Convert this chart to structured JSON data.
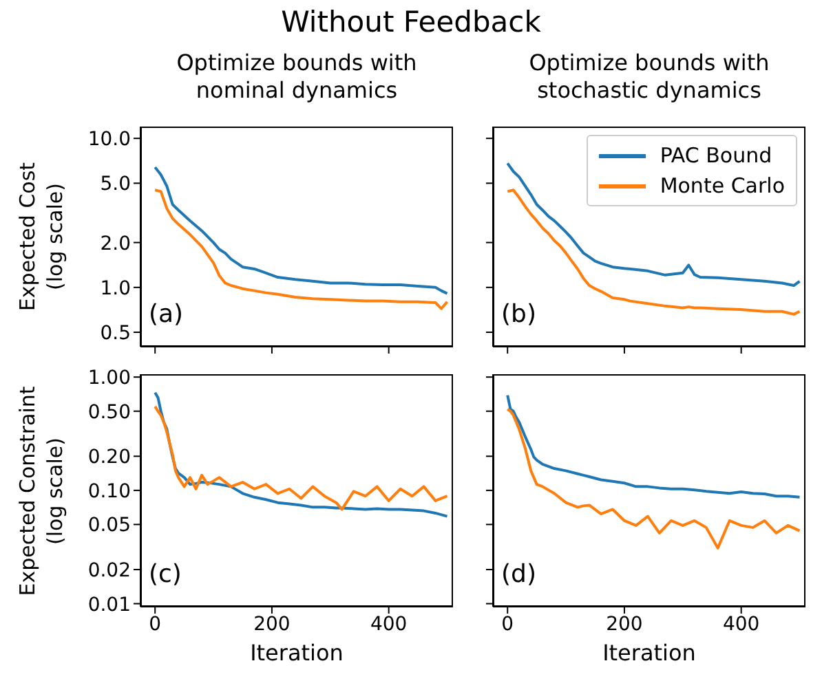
{
  "chart_data": [
    {
      "type": "line",
      "title": "Without Feedback",
      "subtitle": "Optimize bounds with\nnominal dynamics",
      "ylabel": "Expected Cost\n(log scale)",
      "annotations": [
        "(a)"
      ],
      "log": "y",
      "legend": false,
      "tick_labels": "y",
      "xlim": [
        -25,
        510
      ],
      "xticks": [
        {
          "value": 0,
          "label": null
        },
        {
          "value": 200,
          "label": null
        },
        {
          "value": 400,
          "label": null
        }
      ],
      "ylim": [
        0.4,
        12
      ],
      "yticks": [
        {
          "value": 10,
          "label": "10.0"
        },
        {
          "value": 5,
          "label": "5.0"
        },
        {
          "value": 2,
          "label": "2.0"
        },
        {
          "value": 1,
          "label": "1.0"
        },
        {
          "value": 0.5,
          "label": "0.5"
        }
      ],
      "x": [
        0,
        10,
        20,
        30,
        40,
        60,
        80,
        100,
        110,
        120,
        130,
        150,
        170,
        190,
        210,
        240,
        270,
        300,
        330,
        360,
        390,
        420,
        450,
        480,
        490,
        500
      ],
      "series": [
        {
          "color": "#1f77b4",
          "values": [
            6.4,
            5.7,
            4.8,
            3.6,
            3.3,
            2.8,
            2.4,
            2.0,
            1.8,
            1.7,
            1.55,
            1.37,
            1.33,
            1.25,
            1.17,
            1.13,
            1.1,
            1.07,
            1.07,
            1.05,
            1.04,
            1.04,
            1.02,
            1.0,
            0.95,
            0.91
          ]
        },
        {
          "color": "#ff7f0e",
          "values": [
            4.5,
            4.4,
            3.4,
            2.9,
            2.65,
            2.26,
            1.88,
            1.46,
            1.2,
            1.07,
            1.03,
            0.98,
            0.95,
            0.92,
            0.9,
            0.86,
            0.84,
            0.83,
            0.82,
            0.81,
            0.81,
            0.8,
            0.8,
            0.79,
            0.72,
            0.8
          ]
        }
      ]
    },
    {
      "type": "line",
      "subtitle": "Optimize bounds with\nstochastic dynamics",
      "annotations": [
        "(b)"
      ],
      "log": "y",
      "legend": "top right",
      "tick_labels": false,
      "xlim": [
        -25,
        510
      ],
      "xticks": [
        {
          "value": 0,
          "label": null
        },
        {
          "value": 200,
          "label": null
        },
        {
          "value": 400,
          "label": null
        }
      ],
      "ylim": [
        0.4,
        12
      ],
      "yticks": [
        {
          "value": 10,
          "label": null
        },
        {
          "value": 5,
          "label": null
        },
        {
          "value": 2,
          "label": null
        },
        {
          "value": 1,
          "label": null
        },
        {
          "value": 0.5,
          "label": null
        }
      ],
      "x": [
        0,
        10,
        20,
        30,
        40,
        50,
        60,
        70,
        80,
        90,
        100,
        110,
        120,
        130,
        140,
        150,
        160,
        180,
        200,
        210,
        240,
        270,
        300,
        310,
        320,
        330,
        360,
        400,
        440,
        470,
        490,
        500
      ],
      "series": [
        {
          "name": "PAC Bound",
          "color": "#1f77b4",
          "values": [
            6.8,
            6.0,
            5.5,
            4.8,
            4.2,
            3.6,
            3.3,
            3.0,
            2.8,
            2.57,
            2.35,
            2.13,
            1.9,
            1.7,
            1.6,
            1.5,
            1.45,
            1.37,
            1.34,
            1.33,
            1.29,
            1.21,
            1.25,
            1.41,
            1.22,
            1.17,
            1.16,
            1.13,
            1.1,
            1.07,
            1.03,
            1.1
          ]
        },
        {
          "name": "Monte Carlo",
          "color": "#ff7f0e",
          "values": [
            4.4,
            4.5,
            4.0,
            3.5,
            3.1,
            2.8,
            2.5,
            2.3,
            2.06,
            1.9,
            1.7,
            1.5,
            1.33,
            1.15,
            1.03,
            0.98,
            0.94,
            0.85,
            0.83,
            0.81,
            0.78,
            0.75,
            0.73,
            0.74,
            0.73,
            0.73,
            0.72,
            0.71,
            0.69,
            0.69,
            0.66,
            0.69
          ]
        }
      ]
    },
    {
      "type": "line",
      "xlabel": "Iteration",
      "ylabel": "Expected Constraint\n(log scale)",
      "annotations": [
        "(c)"
      ],
      "log": "y",
      "legend": false,
      "xlim": [
        -25,
        510
      ],
      "xticks": [
        0,
        200,
        400
      ],
      "ylim": [
        0.0094,
        1.06
      ],
      "yticks": [
        {
          "value": 1,
          "label": "1.00"
        },
        {
          "value": 0.5,
          "label": "0.50"
        },
        {
          "value": 0.2,
          "label": "0.20"
        },
        {
          "value": 0.1,
          "label": "0.10"
        },
        {
          "value": 0.05,
          "label": "0.05"
        },
        {
          "value": 0.02,
          "label": "0.02"
        },
        {
          "value": 0.01,
          "label": "0.01"
        }
      ],
      "x": [
        0,
        5,
        10,
        15,
        20,
        25,
        30,
        35,
        40,
        50,
        60,
        70,
        80,
        90,
        110,
        130,
        150,
        170,
        190,
        210,
        230,
        250,
        270,
        290,
        310,
        320,
        340,
        360,
        380,
        400,
        420,
        440,
        460,
        480,
        500
      ],
      "series": [
        {
          "color": "#1f77b4",
          "values": [
            0.73,
            0.66,
            0.5,
            0.4,
            0.35,
            0.26,
            0.197,
            0.156,
            0.142,
            0.13,
            0.113,
            0.115,
            0.118,
            0.117,
            0.113,
            0.108,
            0.094,
            0.087,
            0.083,
            0.078,
            0.076,
            0.074,
            0.071,
            0.071,
            0.07,
            0.07,
            0.069,
            0.068,
            0.069,
            0.068,
            0.068,
            0.067,
            0.066,
            0.063,
            0.059
          ]
        },
        {
          "color": "#ff7f0e",
          "values": [
            0.55,
            0.5,
            0.46,
            0.4,
            0.33,
            0.26,
            0.207,
            0.149,
            0.13,
            0.108,
            0.13,
            0.103,
            0.136,
            0.113,
            0.13,
            0.108,
            0.118,
            0.103,
            0.113,
            0.094,
            0.103,
            0.085,
            0.108,
            0.089,
            0.078,
            0.068,
            0.098,
            0.089,
            0.108,
            0.081,
            0.103,
            0.089,
            0.108,
            0.081,
            0.089
          ]
        }
      ]
    },
    {
      "type": "line",
      "xlabel": "Iteration",
      "annotations": [
        "(d)"
      ],
      "log": "y",
      "legend": false,
      "tick_labels": "x",
      "xlim": [
        -25,
        510
      ],
      "xticks": [
        0,
        200,
        400
      ],
      "ylim": [
        0.0094,
        1.06
      ],
      "yticks": [
        {
          "value": 1,
          "label": null
        },
        {
          "value": 0.5,
          "label": null
        },
        {
          "value": 0.2,
          "label": null
        },
        {
          "value": 0.1,
          "label": null
        },
        {
          "value": 0.05,
          "label": null
        },
        {
          "value": 0.02,
          "label": null
        },
        {
          "value": 0.01,
          "label": null
        }
      ],
      "x": [
        0,
        5,
        10,
        15,
        20,
        30,
        40,
        45,
        50,
        60,
        80,
        100,
        120,
        130,
        140,
        160,
        180,
        200,
        220,
        240,
        260,
        280,
        300,
        320,
        340,
        360,
        380,
        400,
        420,
        440,
        460,
        480,
        500
      ],
      "series": [
        {
          "color": "#1f77b4",
          "values": [
            0.69,
            0.52,
            0.5,
            0.44,
            0.4,
            0.3,
            0.23,
            0.197,
            0.185,
            0.17,
            0.156,
            0.149,
            0.14,
            0.136,
            0.132,
            0.124,
            0.12,
            0.116,
            0.108,
            0.108,
            0.105,
            0.103,
            0.103,
            0.101,
            0.098,
            0.096,
            0.094,
            0.097,
            0.094,
            0.093,
            0.089,
            0.089,
            0.087
          ]
        },
        {
          "color": "#ff7f0e",
          "values": [
            0.52,
            0.5,
            0.46,
            0.4,
            0.345,
            0.238,
            0.149,
            0.13,
            0.113,
            0.108,
            0.094,
            0.078,
            0.071,
            0.073,
            0.074,
            0.062,
            0.068,
            0.054,
            0.049,
            0.059,
            0.042,
            0.054,
            0.049,
            0.054,
            0.047,
            0.031,
            0.054,
            0.049,
            0.047,
            0.054,
            0.042,
            0.049,
            0.044
          ]
        }
      ]
    }
  ]
}
